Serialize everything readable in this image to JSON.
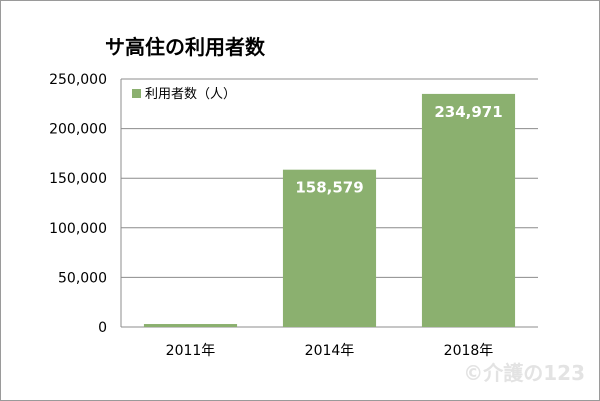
{
  "chart_data": {
    "type": "bar",
    "title": "サ高住の利用者数",
    "categories": [
      "2011年",
      "2014年",
      "2018年"
    ],
    "series": [
      {
        "name": "利用者数（人）",
        "values": [
          3000,
          158579,
          234971
        ],
        "labels": [
          "",
          "158,579",
          "234,971"
        ],
        "color": "#8bb06f"
      }
    ],
    "ylim": [
      0,
      250000
    ],
    "yticks": [
      {
        "value": 0,
        "label": "0"
      },
      {
        "value": 50000,
        "label": "50,000"
      },
      {
        "value": 100000,
        "label": "100,000"
      },
      {
        "value": 150000,
        "label": "150,000"
      },
      {
        "value": 200000,
        "label": "200,000"
      },
      {
        "value": 250000,
        "label": "250,000"
      }
    ],
    "grid": true,
    "legend_position": "top-left"
  },
  "watermark": "©介護の123",
  "colors": {
    "bar": "#8bb06f",
    "grid": "#8c8c8c",
    "axis": "#8c8c8c"
  }
}
